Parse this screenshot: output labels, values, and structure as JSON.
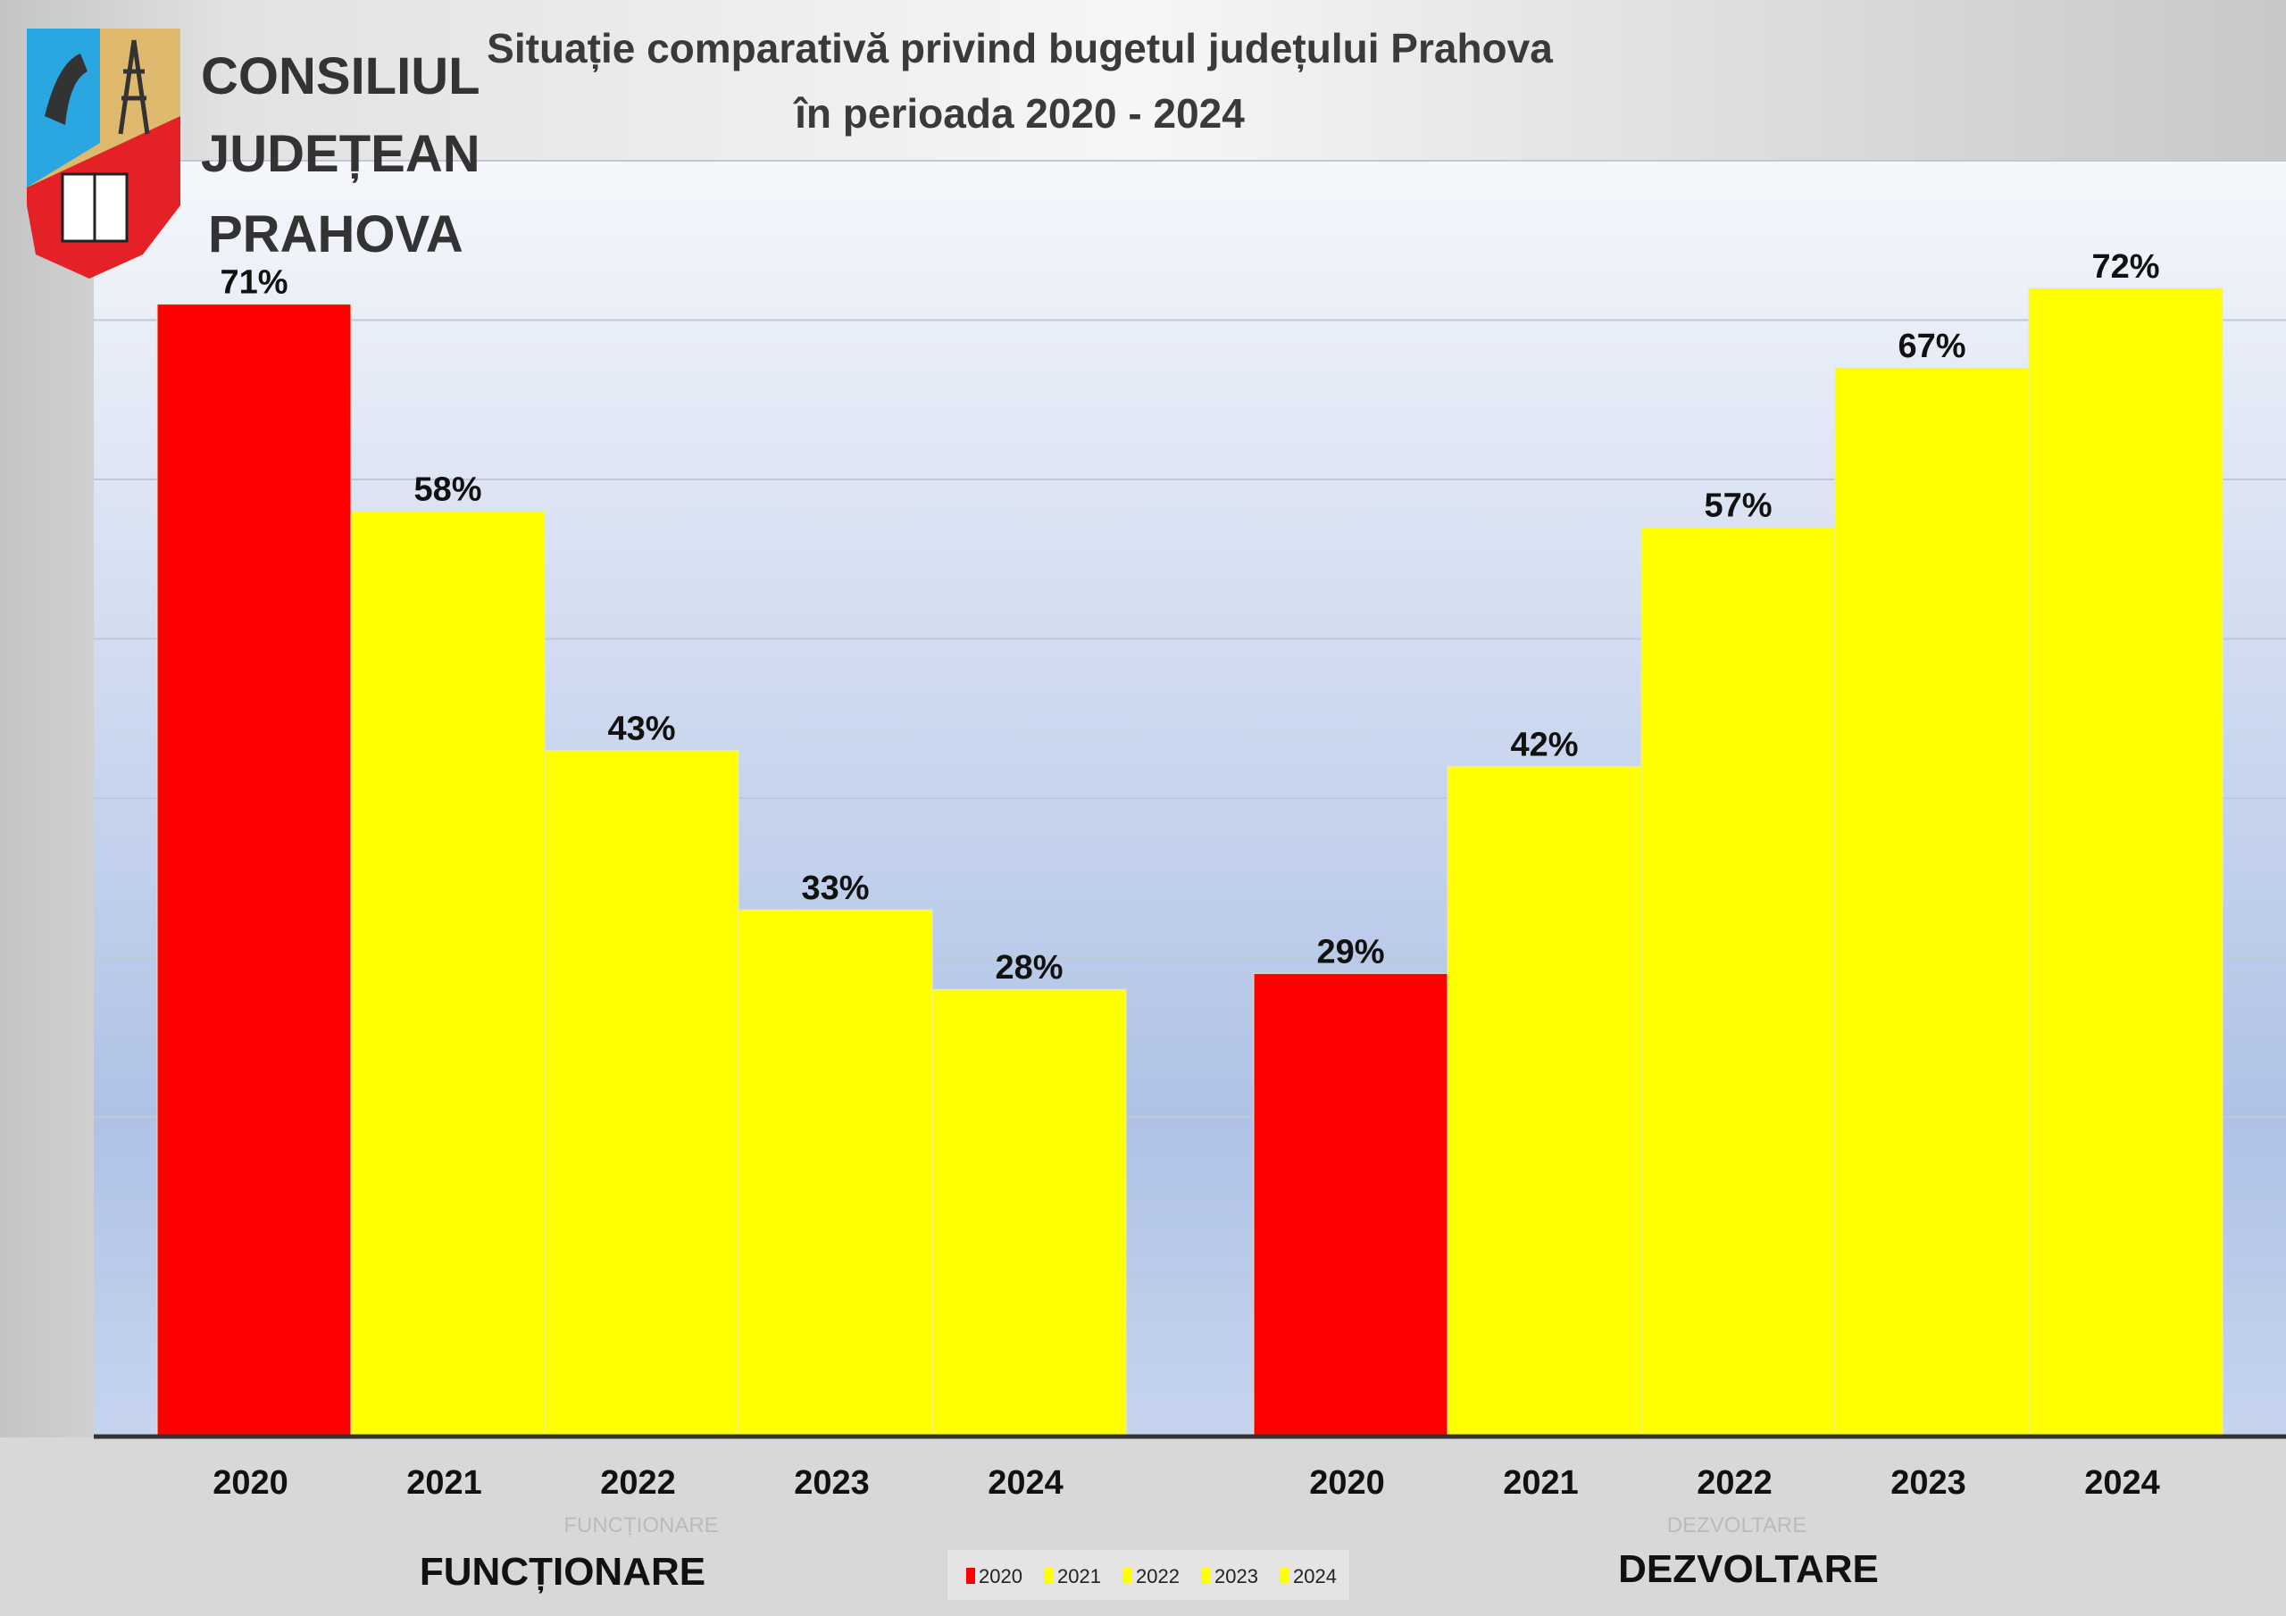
{
  "logo": {
    "lines": [
      "CONSILIUL",
      "JUDEȚEAN",
      "PRAHOVA"
    ]
  },
  "colors": {
    "c2020": "#ff0000",
    "other": "#ffff00"
  },
  "chart_data": {
    "type": "bar",
    "title": [
      "Situație comparativă privind bugetul județului Prahova",
      "în perioada 2020 - 2024"
    ],
    "groups": [
      "FUNCȚIONARE",
      "DEZVOLTARE"
    ],
    "categories": [
      "2020",
      "2021",
      "2022",
      "2023",
      "2024"
    ],
    "values": [
      [
        71,
        58,
        43,
        33,
        28
      ],
      [
        29,
        42,
        57,
        67,
        72
      ]
    ],
    "labels": [
      [
        "71%",
        "58%",
        "43%",
        "33%",
        "28%"
      ],
      [
        "29%",
        "42%",
        "57%",
        "67%",
        "72%"
      ]
    ],
    "ylim": [
      0,
      80
    ],
    "grid_step": 10,
    "grid": true,
    "legend": {
      "position": "bottom-center",
      "entries": [
        "2020",
        "2021",
        "2022",
        "2023",
        "2024"
      ]
    }
  }
}
